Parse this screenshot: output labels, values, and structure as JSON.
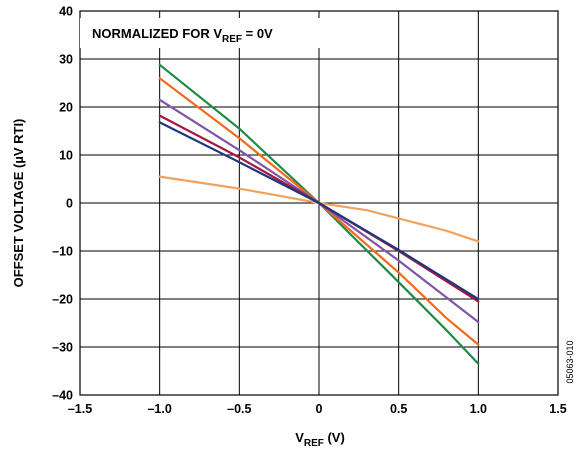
{
  "chart_data": {
    "type": "line",
    "title": "",
    "annotation": {
      "main": "NORMALIZED FOR V",
      "sub": "REF",
      "tail": " = 0V"
    },
    "xlabel": {
      "main": "V",
      "sub": "REF",
      "tail": " (V)"
    },
    "ylabel": "OFFSET VOLTAGE (µV RTI)",
    "xlim": [
      -1.5,
      1.5
    ],
    "ylim": [
      -40,
      40
    ],
    "xticks": [
      -1.5,
      -1.0,
      -0.5,
      0,
      0.5,
      1.0,
      1.5
    ],
    "xtick_labels": [
      "–1.5",
      "–1.0",
      "–0.5",
      "0",
      "0.5",
      "1.0",
      "1.5"
    ],
    "yticks": [
      40,
      30,
      20,
      10,
      0,
      -10,
      -20,
      -30,
      -40
    ],
    "ytick_labels": [
      "40",
      "30",
      "20",
      "10",
      "0",
      "–10",
      "–20",
      "–30",
      "–40"
    ],
    "grid": true,
    "figure_id": "05063-010",
    "series": [
      {
        "color": "#F2A25C",
        "points": [
          [
            -1.0,
            5.5
          ],
          [
            -0.5,
            3.0
          ],
          [
            0,
            0
          ],
          [
            0.3,
            -1.5
          ],
          [
            0.5,
            -3.2
          ],
          [
            0.8,
            -5.8
          ],
          [
            1.0,
            -8.0
          ]
        ]
      },
      {
        "color": "#1F8A45",
        "points": [
          [
            -1.0,
            28.8
          ],
          [
            -0.5,
            15.5
          ],
          [
            0,
            0
          ],
          [
            0.5,
            -16.5
          ],
          [
            0.8,
            -26.5
          ],
          [
            1.0,
            -33.5
          ]
        ]
      },
      {
        "color": "#F26A1B",
        "points": [
          [
            -1.0,
            26.0
          ],
          [
            -0.5,
            13.5
          ],
          [
            0,
            0
          ],
          [
            0.5,
            -14.5
          ],
          [
            0.8,
            -24.0
          ],
          [
            1.0,
            -29.5
          ]
        ]
      },
      {
        "color": "#8055A8",
        "points": [
          [
            -1.0,
            21.5
          ],
          [
            -0.5,
            11.0
          ],
          [
            0,
            0
          ],
          [
            0.5,
            -12.0
          ],
          [
            1.0,
            -24.8
          ]
        ]
      },
      {
        "color": "#A3183C",
        "points": [
          [
            -1.0,
            18.2
          ],
          [
            -0.5,
            9.5
          ],
          [
            0,
            0
          ],
          [
            0.5,
            -10.0
          ],
          [
            1.0,
            -20.5
          ]
        ]
      },
      {
        "color": "#22367F",
        "points": [
          [
            -1.0,
            16.8
          ],
          [
            -0.5,
            8.5
          ],
          [
            0,
            0
          ],
          [
            0.5,
            -9.8
          ],
          [
            1.0,
            -20.0
          ]
        ]
      }
    ]
  }
}
